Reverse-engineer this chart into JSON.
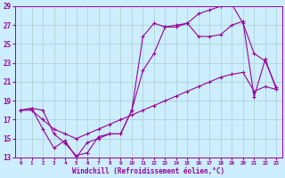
{
  "xlabel": "Windchill (Refroidissement éolien,°C)",
  "ylabel": "",
  "bg_color": "#cceeff",
  "line_color": "#990099",
  "grid_color": "#aacccc",
  "xlim": [
    -0.5,
    23.5
  ],
  "ylim": [
    13,
    29
  ],
  "xticks": [
    0,
    1,
    2,
    3,
    4,
    5,
    6,
    7,
    8,
    9,
    10,
    11,
    12,
    13,
    14,
    15,
    16,
    17,
    18,
    19,
    20,
    21,
    22,
    23
  ],
  "yticks": [
    13,
    15,
    17,
    19,
    21,
    23,
    25,
    27,
    29
  ],
  "series1_x": [
    0,
    1,
    2,
    3,
    4,
    5,
    6,
    7,
    8,
    9,
    10,
    11,
    12,
    13,
    14,
    15,
    16,
    17,
    18,
    19,
    20,
    21,
    22,
    23
  ],
  "series1_y": [
    18.0,
    18.2,
    18.0,
    15.5,
    14.5,
    13.2,
    13.5,
    15.2,
    15.5,
    15.5,
    18.0,
    25.8,
    27.2,
    26.8,
    27.0,
    27.2,
    28.2,
    28.6,
    29.0,
    29.2,
    27.2,
    24.0,
    23.2,
    20.4
  ],
  "series2_x": [
    0,
    1,
    2,
    3,
    4,
    5,
    6,
    7,
    8,
    9,
    10,
    11,
    12,
    13,
    14,
    15,
    16,
    17,
    18,
    19,
    20,
    21,
    22,
    23
  ],
  "series2_y": [
    18.0,
    18.2,
    16.0,
    14.0,
    14.8,
    13.0,
    14.6,
    15.0,
    15.5,
    15.5,
    18.0,
    22.2,
    24.0,
    26.8,
    26.8,
    27.2,
    25.8,
    25.8,
    26.0,
    27.0,
    27.4,
    19.4,
    23.4,
    20.2
  ],
  "series3_x": [
    0,
    1,
    2,
    3,
    4,
    5,
    6,
    7,
    8,
    9,
    10,
    11,
    12,
    13,
    14,
    15,
    16,
    17,
    18,
    19,
    20,
    21,
    22,
    23
  ],
  "series3_y": [
    18.0,
    18.0,
    17.0,
    16.0,
    15.5,
    15.0,
    15.5,
    16.0,
    16.5,
    17.0,
    17.5,
    18.0,
    18.5,
    19.0,
    19.5,
    20.0,
    20.5,
    21.0,
    21.5,
    21.8,
    22.0,
    20.0,
    20.5,
    20.2
  ]
}
